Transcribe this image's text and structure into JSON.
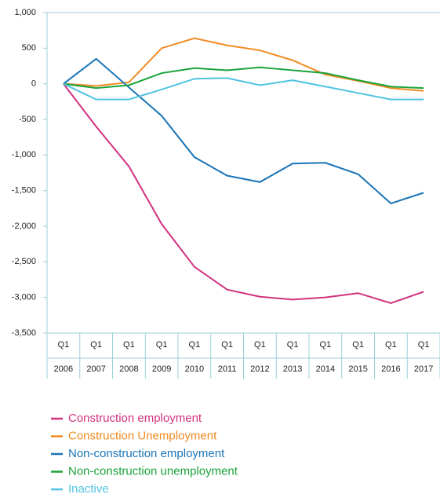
{
  "chart_data": {
    "type": "line",
    "categories": [
      "2006",
      "2007",
      "2008",
      "2009",
      "2010",
      "2011",
      "2012",
      "2013",
      "2014",
      "2015",
      "2016",
      "2017"
    ],
    "period_labels": [
      "Q1",
      "Q1",
      "Q1",
      "Q1",
      "Q1",
      "Q1",
      "Q1",
      "Q1",
      "Q1",
      "Q1",
      "Q1",
      "Q1"
    ],
    "ylim": [
      -3500,
      1000
    ],
    "yticks": [
      {
        "value": -3500,
        "label": "-3,500"
      },
      {
        "value": -3000,
        "label": "-3,000"
      },
      {
        "value": -2500,
        "label": "-2,500"
      },
      {
        "value": -2000,
        "label": "-2,000"
      },
      {
        "value": -1500,
        "label": "-1,500"
      },
      {
        "value": -1000,
        "label": "-1,000"
      },
      -500,
      0,
      500,
      {
        "value": 1000,
        "label": "1,000"
      }
    ],
    "grid": false,
    "legend": "bottom-left",
    "series": [
      {
        "name": "Construction employment",
        "color": "#d1317f",
        "values": [
          0,
          -600,
          -1160,
          -1970,
          -2570,
          -2890,
          -2990,
          -3030,
          -3000,
          -2940,
          -3080,
          -2920
        ]
      },
      {
        "name": "Construction Unemployment",
        "color": "#f18a21",
        "values": [
          0,
          -30,
          20,
          500,
          640,
          540,
          470,
          330,
          130,
          40,
          -60,
          -100
        ]
      },
      {
        "name": "Non-construction employment",
        "color": "#1a75b8",
        "values": [
          0,
          350,
          -50,
          -450,
          -1030,
          -1290,
          -1380,
          -1120,
          -1110,
          -1270,
          -1680,
          -1530
        ]
      },
      {
        "name": "Non-construction unemployment",
        "color": "#1aa33a",
        "values": [
          0,
          -60,
          -20,
          150,
          220,
          190,
          230,
          190,
          150,
          50,
          -40,
          -60
        ]
      },
      {
        "name": "Inactive",
        "color": "#4fc3e0",
        "values": [
          0,
          -220,
          -220,
          -80,
          70,
          80,
          -20,
          50,
          -40,
          -130,
          -220,
          -220
        ]
      }
    ]
  }
}
